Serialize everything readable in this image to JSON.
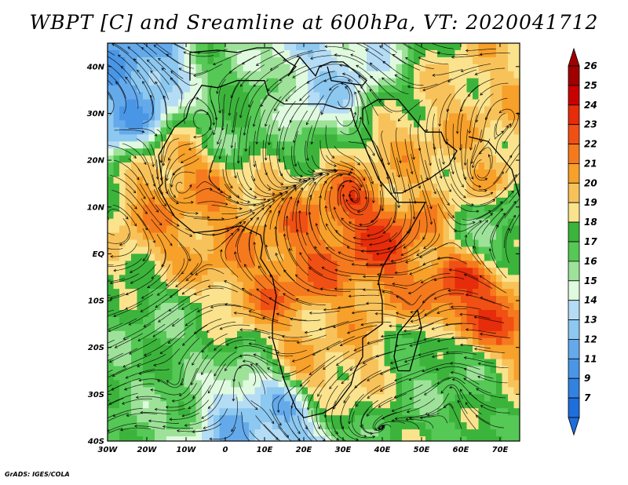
{
  "title": "WBPT [C] and Sreamline at 600hPa, VT: 2020041712",
  "credit": "GrADS: IGES/COLA",
  "map": {
    "variable": "WBPT",
    "units": "C",
    "level": "600hPa",
    "valid_time": "2020041712",
    "lon_range": [
      -30,
      75
    ],
    "lat_range": [
      -40,
      45
    ],
    "lat_ticks": [
      {
        "value": 40,
        "label": "40N"
      },
      {
        "value": 30,
        "label": "30N"
      },
      {
        "value": 20,
        "label": "20N"
      },
      {
        "value": 10,
        "label": "10N"
      },
      {
        "value": 0,
        "label": "EQ"
      },
      {
        "value": -10,
        "label": "10S"
      },
      {
        "value": -20,
        "label": "20S"
      },
      {
        "value": -30,
        "label": "30S"
      },
      {
        "value": -40,
        "label": "40S"
      }
    ],
    "lon_ticks": [
      {
        "value": -30,
        "label": "30W"
      },
      {
        "value": -20,
        "label": "20W"
      },
      {
        "value": -10,
        "label": "10W"
      },
      {
        "value": 0,
        "label": "0"
      },
      {
        "value": 10,
        "label": "10E"
      },
      {
        "value": 20,
        "label": "20E"
      },
      {
        "value": 30,
        "label": "30E"
      },
      {
        "value": 40,
        "label": "40E"
      },
      {
        "value": 50,
        "label": "50E"
      },
      {
        "value": 60,
        "label": "60E"
      },
      {
        "value": 70,
        "label": "70E"
      }
    ]
  },
  "colorbar": {
    "levels": [
      {
        "label": "26",
        "color": "#a00000"
      },
      {
        "label": "25",
        "color": "#c80000"
      },
      {
        "label": "24",
        "color": "#e62c0a"
      },
      {
        "label": "23",
        "color": "#f05014"
      },
      {
        "label": "22",
        "color": "#f57a1e"
      },
      {
        "label": "21",
        "color": "#f7a02a"
      },
      {
        "label": "20",
        "color": "#f8c25a"
      },
      {
        "label": "19",
        "color": "#fae38c"
      },
      {
        "label": "18",
        "color": "#3cb43c"
      },
      {
        "label": "17",
        "color": "#55c855"
      },
      {
        "label": "16",
        "color": "#9ee29a"
      },
      {
        "label": "15",
        "color": "#e0fae0"
      },
      {
        "label": "14",
        "color": "#b4dcf5"
      },
      {
        "label": "13",
        "color": "#8cc8f0"
      },
      {
        "label": "12",
        "color": "#64aaeb"
      },
      {
        "label": "11",
        "color": "#4a96e6"
      },
      {
        "label": "9",
        "color": "#3282e0"
      },
      {
        "label": "7",
        "color": "#1e6edc"
      }
    ],
    "top_arrow_color": "#a00000",
    "bottom_arrow_color": "#1e6edc"
  },
  "field_regions": [
    {
      "name": "nw-atlantic-cold",
      "lon": -27,
      "lat": 36,
      "value": 12
    },
    {
      "name": "sahara-north",
      "lon": 5,
      "lat": 30,
      "value": 17
    },
    {
      "name": "mediterranean",
      "lon": 25,
      "lat": 38,
      "value": 14
    },
    {
      "name": "sahel-warm",
      "lon": -10,
      "lat": 12,
      "value": 21
    },
    {
      "name": "arabia-warm",
      "lon": 45,
      "lat": 17,
      "value": 20
    },
    {
      "name": "horn-east-africa-hot",
      "lon": 38,
      "lat": 6,
      "value": 23
    },
    {
      "name": "gulf-guinea",
      "lon": 5,
      "lat": 2,
      "value": 21
    },
    {
      "name": "congo-hot",
      "lon": 18,
      "lat": -4,
      "value": 22
    },
    {
      "name": "indian-ocean-hot",
      "lon": 63,
      "lat": -10,
      "value": 23
    },
    {
      "name": "south-atlantic-green",
      "lon": -15,
      "lat": -20,
      "value": 17
    },
    {
      "name": "south-africa-warm",
      "lon": 25,
      "lat": -20,
      "value": 20
    },
    {
      "name": "southern-indian-green",
      "lon": 55,
      "lat": -25,
      "value": 17
    },
    {
      "name": "southern-cold",
      "lon": 10,
      "lat": -37,
      "value": 13
    },
    {
      "name": "northern-arabia-sea-warm",
      "lon": 65,
      "lat": 20,
      "value": 20
    },
    {
      "name": "india-green",
      "lon": 70,
      "lat": 5,
      "value": 17
    }
  ]
}
